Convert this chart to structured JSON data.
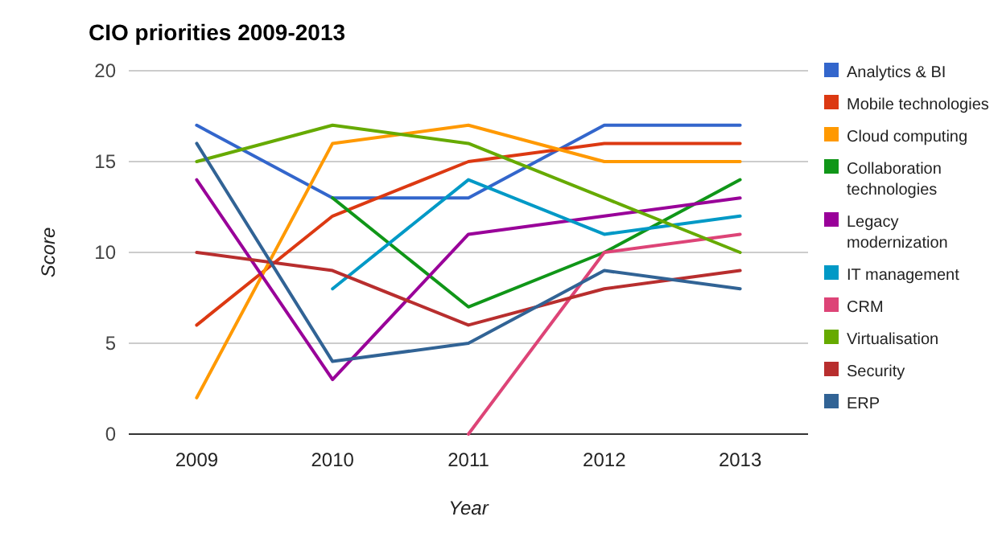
{
  "chart_data": {
    "type": "line",
    "title": "CIO priorities 2009-2013",
    "xlabel": "Year",
    "ylabel": "Score",
    "categories": [
      "2009",
      "2010",
      "2011",
      "2012",
      "2013"
    ],
    "ylim": [
      0,
      20
    ],
    "yticks": [
      0,
      5,
      10,
      15,
      20
    ],
    "grid": "y",
    "legend": "right",
    "marker": "none",
    "series": [
      {
        "name": "Analytics & BI",
        "color": "#3366cc",
        "values": [
          17,
          13,
          13,
          17,
          17
        ]
      },
      {
        "name": "Mobile technologies",
        "color": "#dc3912",
        "values": [
          6,
          12,
          15,
          16,
          16
        ]
      },
      {
        "name": "Cloud computing",
        "color": "#ff9900",
        "values": [
          2,
          16,
          17,
          15,
          15
        ]
      },
      {
        "name": "Collaboration technologies",
        "color": "#109618",
        "values": [
          null,
          13,
          7,
          10,
          14
        ]
      },
      {
        "name": "Legacy modernization",
        "color": "#990099",
        "values": [
          14,
          3,
          11,
          12,
          13
        ]
      },
      {
        "name": "IT management",
        "color": "#0099c6",
        "values": [
          null,
          8,
          14,
          11,
          12
        ]
      },
      {
        "name": "CRM",
        "color": "#dd4477",
        "values": [
          null,
          null,
          0,
          10,
          11
        ]
      },
      {
        "name": "Virtualisation",
        "color": "#66aa00",
        "values": [
          15,
          17,
          16,
          13,
          10
        ]
      },
      {
        "name": "Security",
        "color": "#b82e2e",
        "values": [
          10,
          9,
          6,
          8,
          9
        ]
      },
      {
        "name": "ERP",
        "color": "#316395",
        "values": [
          16,
          4,
          5,
          9,
          8
        ]
      }
    ]
  }
}
